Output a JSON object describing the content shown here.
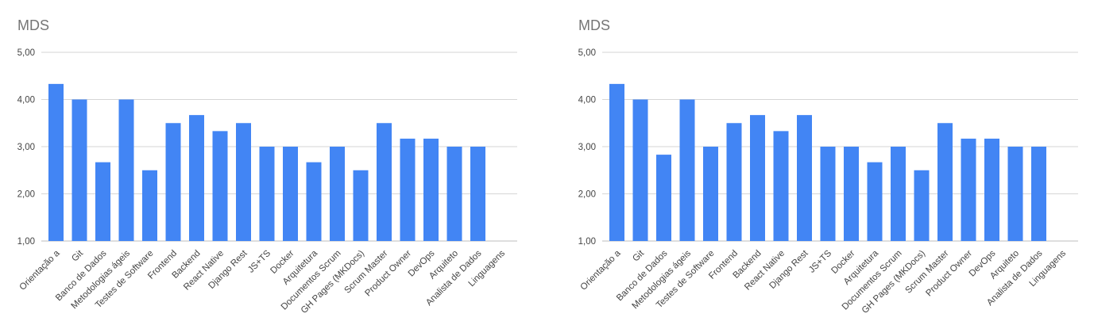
{
  "chart_data": [
    {
      "type": "bar",
      "title": "MDS",
      "xlabel": "",
      "ylabel": "",
      "ylim": [
        1,
        5
      ],
      "yticks": [
        "1,00",
        "2,00",
        "3,00",
        "4,00",
        "5,00"
      ],
      "grid": true,
      "bar_color": "#4285f4",
      "categories": [
        "Orientação a",
        "Git",
        "Banco de Dados",
        "Metodologias ágeis",
        "Testes de Software",
        "Frontend",
        "Backend",
        "React Native",
        "Django Rest",
        "JS+TS",
        "Docker",
        "Arquitetura",
        "Documentos Scrum",
        "GH Pages (MKDocs)",
        "Scrum Master",
        "Product Owner",
        "DevOps",
        "Arquiteto",
        "Analista de Dados",
        "Linguagens"
      ],
      "values": [
        4.33,
        4.0,
        2.67,
        4.0,
        2.5,
        3.5,
        3.67,
        3.33,
        3.5,
        3.0,
        3.0,
        2.67,
        3.0,
        2.5,
        3.5,
        3.17,
        3.17,
        3.0,
        3.0,
        null
      ]
    },
    {
      "type": "bar",
      "title": "MDS",
      "xlabel": "",
      "ylabel": "",
      "ylim": [
        1,
        5
      ],
      "yticks": [
        "1,00",
        "2,00",
        "3,00",
        "4,00",
        "5,00"
      ],
      "grid": true,
      "bar_color": "#4285f4",
      "categories": [
        "Orientação a",
        "Git",
        "Banco de Dados",
        "Metodologias ágeis",
        "Testes de Software",
        "Frontend",
        "Backend",
        "React Native",
        "Django Rest",
        "JS+TS",
        "Docker",
        "Arquitetura",
        "Documentos Scrum",
        "GH Pages (MKDocs)",
        "Scrum Master",
        "Product Owner",
        "DevOps",
        "Arquiteto",
        "Analista de Dados",
        "Linguagens"
      ],
      "values": [
        4.33,
        4.0,
        2.83,
        4.0,
        3.0,
        3.5,
        3.67,
        3.33,
        3.67,
        3.0,
        3.0,
        2.67,
        3.0,
        2.5,
        3.5,
        3.17,
        3.17,
        3.0,
        3.0,
        null
      ]
    }
  ]
}
